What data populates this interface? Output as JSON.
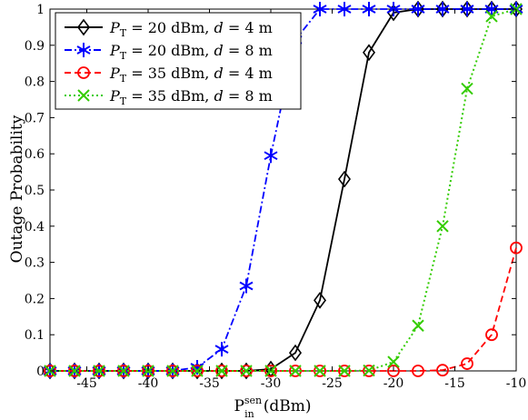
{
  "chart_data": {
    "type": "line",
    "xlabel": "P_in^sen (dBm)",
    "ylabel": "Outage Probability",
    "xlim": [
      -48,
      -10
    ],
    "ylim": [
      0,
      1
    ],
    "xticks": [
      -45,
      -40,
      -35,
      -30,
      -25,
      -20,
      -15,
      -10
    ],
    "yticks": [
      0,
      0.1,
      0.2,
      0.3,
      0.4,
      0.5,
      0.6,
      0.7,
      0.8,
      0.9,
      1
    ],
    "grid": false,
    "legend_position": "top-left",
    "x": [
      -48,
      -46,
      -44,
      -42,
      -40,
      -38,
      -36,
      -34,
      -32,
      -30,
      -28,
      -26,
      -24,
      -22,
      -20,
      -18,
      -16,
      -14,
      -12,
      -10
    ],
    "series": [
      {
        "name": "P_T = 20 dBm, d = 4 m",
        "color": "#000000",
        "line_style": "solid",
        "marker": "diamond",
        "values": [
          0,
          0,
          0,
          0,
          0,
          0,
          0,
          0,
          0,
          0.005,
          0.05,
          0.195,
          0.53,
          0.88,
          0.99,
          1,
          1,
          1,
          1,
          1
        ]
      },
      {
        "name": "P_T = 20 dBm, d = 8 m",
        "color": "#0000ff",
        "line_style": "dashdot",
        "marker": "asterisk",
        "values": [
          0,
          0,
          0,
          0,
          0,
          0,
          0.01,
          0.06,
          0.235,
          0.595,
          0.915,
          1,
          1,
          1,
          1,
          1,
          1,
          1,
          1,
          1
        ]
      },
      {
        "name": "P_T = 35 dBm, d = 4 m",
        "color": "#ff0000",
        "line_style": "dashed",
        "marker": "circle",
        "values": [
          0,
          0,
          0,
          0,
          0,
          0,
          0,
          0,
          0,
          0,
          0,
          0,
          0,
          0,
          0,
          0,
          0.002,
          0.02,
          0.1,
          0.34
        ]
      },
      {
        "name": "P_T = 35 dBm, d = 8 m",
        "color": "#33cc00",
        "line_style": "dotted",
        "marker": "x",
        "values": [
          0,
          0,
          0,
          0,
          0,
          0,
          0,
          0,
          0,
          0,
          0,
          0,
          0,
          0.001,
          0.025,
          0.125,
          0.4,
          0.78,
          0.98,
          1
        ]
      }
    ]
  },
  "axis_text": {
    "xlabel_main": "P",
    "xlabel_sup": "sen",
    "xlabel_sub": "in",
    "xlabel_unit": "(dBm)",
    "ylabel": "Outage Probability"
  },
  "legend": [
    {
      "p": "P",
      "sub": "T",
      "rest1": " = 20 dBm, ",
      "d": "d",
      "rest2": " = 4 m"
    },
    {
      "p": "P",
      "sub": "T",
      "rest1": " = 20 dBm, ",
      "d": "d",
      "rest2": " = 8 m"
    },
    {
      "p": "P",
      "sub": "T",
      "rest1": " = 35 dBm, ",
      "d": "d",
      "rest2": " = 4 m"
    },
    {
      "p": "P",
      "sub": "T",
      "rest1": " = 35 dBm, ",
      "d": "d",
      "rest2": " = 8 m"
    }
  ]
}
